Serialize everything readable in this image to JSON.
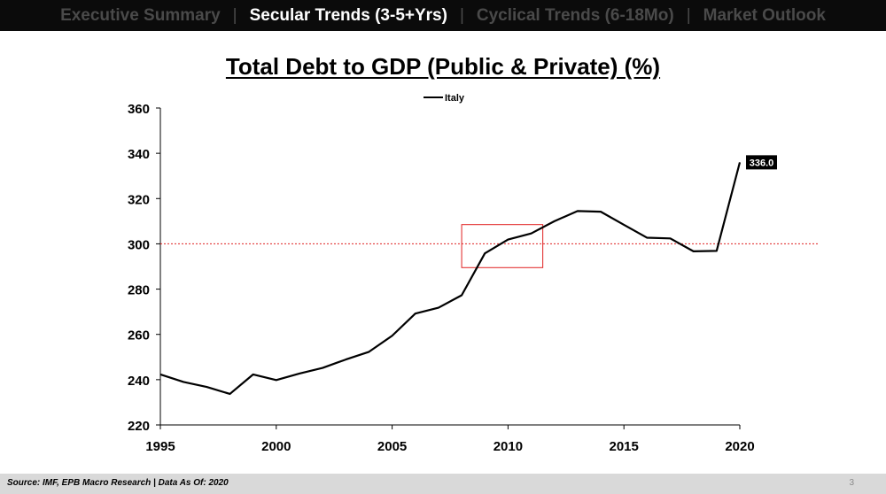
{
  "nav": {
    "tabs": [
      {
        "label": "Executive Summary",
        "active": false
      },
      {
        "label": "Secular Trends (3-5+Yrs)",
        "active": true
      },
      {
        "label": "Cyclical Trends (6-18Mo)",
        "active": false
      },
      {
        "label": "Market Outlook",
        "active": false
      }
    ],
    "separator": "|"
  },
  "footer": {
    "source": "Source: IMF, EPB Macro Research   |   Data As Of: 2020",
    "page_number": "3"
  },
  "colors": {
    "topbar_bg": "#0b0b0b",
    "inactive_tab": "#4a4a4a",
    "active_tab": "#ffffff",
    "line": "#000000",
    "reference_line": "#e02020",
    "highlight_box": "#e02020",
    "footer_bg": "#d9d9d9"
  },
  "chart_data": {
    "type": "line",
    "title": "Total Debt to GDP (Public & Private) (%)",
    "xlabel": "",
    "ylabel": "",
    "xlim": [
      1995,
      2020
    ],
    "ylim": [
      220,
      360
    ],
    "x_ticks": [
      1995,
      2000,
      2005,
      2010,
      2015,
      2020
    ],
    "y_ticks": [
      220,
      240,
      260,
      280,
      300,
      320,
      340,
      360
    ],
    "grid": false,
    "legend_position": "top-center",
    "series": [
      {
        "name": "Italy",
        "x": [
          1995,
          1996,
          1997,
          1998,
          1999,
          2000,
          2001,
          2002,
          2003,
          2004,
          2005,
          2006,
          2007,
          2008,
          2009,
          2010,
          2011,
          2012,
          2013,
          2014,
          2015,
          2016,
          2017,
          2018,
          2019,
          2020
        ],
        "y": [
          242.3,
          239.0,
          236.8,
          233.7,
          242.3,
          239.8,
          242.7,
          245.2,
          248.9,
          252.3,
          259.4,
          269.2,
          271.8,
          277.3,
          295.8,
          301.9,
          304.6,
          310.0,
          314.5,
          314.2,
          308.4,
          302.7,
          302.4,
          296.7,
          296.9,
          336.0
        ]
      }
    ],
    "reference_line": {
      "y": 300,
      "style": "dotted"
    },
    "highlight_box": {
      "x": [
        2008,
        2011.5
      ],
      "y": [
        289.5,
        308.5
      ]
    },
    "end_label": "336.0"
  }
}
